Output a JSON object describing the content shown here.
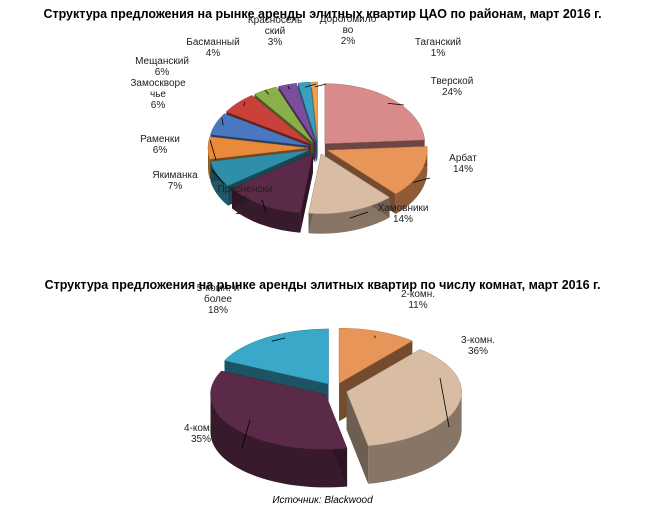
{
  "chart_data": [
    {
      "type": "pie",
      "style": "3d-exploded",
      "title": "Структура предложения на рынке аренды элитных квартир ЦАО по районам, март 2016 г.",
      "slices": [
        {
          "name_lines": [
            "Тверской"
          ],
          "value_text": "24%",
          "value": 24,
          "color": "#d98a8a"
        },
        {
          "name_lines": [
            "Арбат"
          ],
          "value_text": "14%",
          "value": 14,
          "color": "#e8955a"
        },
        {
          "name_lines": [
            "Хамовники"
          ],
          "value_text": "14%",
          "value": 14,
          "color": "#d9bca4"
        },
        {
          "name_lines": [
            "Пресненски",
            "й"
          ],
          "value_text": "13%",
          "value": 13,
          "color": "#5a2a48"
        },
        {
          "name_lines": [
            "Якиманка"
          ],
          "value_text": "7%",
          "value": 7,
          "color": "#2f8fa8"
        },
        {
          "name_lines": [
            "Раменки"
          ],
          "value_text": "6%",
          "value": 6,
          "color": "#e88a3a"
        },
        {
          "name_lines": [
            "Замоскворе",
            "чье"
          ],
          "value_text": "6%",
          "value": 6,
          "color": "#4a78c0"
        },
        {
          "name_lines": [
            "Мещанский"
          ],
          "value_text": "6%",
          "value": 6,
          "color": "#c8423a"
        },
        {
          "name_lines": [
            "Басманный"
          ],
          "value_text": "4%",
          "value": 4,
          "color": "#8ab04a"
        },
        {
          "name_lines": [
            "Красносель",
            "ский"
          ],
          "value_text": "3%",
          "value": 3,
          "color": "#7a4e9a"
        },
        {
          "name_lines": [
            "Дорогомило",
            "во"
          ],
          "value_text": "2%",
          "value": 2,
          "color": "#3aa0c0"
        },
        {
          "name_lines": [
            "Таганский"
          ],
          "value_text": "1%",
          "value": 1,
          "color": "#f0a050"
        }
      ]
    },
    {
      "type": "pie",
      "style": "3d-exploded",
      "title": "Структура предложения на рынке аренды элитных квартир по числу комнат, март 2016 г.",
      "slices": [
        {
          "name_lines": [
            "2-комн."
          ],
          "value_text": "11%",
          "value": 11,
          "color": "#e8955a"
        },
        {
          "name_lines": [
            "3-комн."
          ],
          "value_text": "36%",
          "value": 36,
          "color": "#d9bca4"
        },
        {
          "name_lines": [
            "4-комн."
          ],
          "value_text": "35%",
          "value": 35,
          "color": "#5a2a48"
        },
        {
          "name_lines": [
            "5-комн. и",
            "более"
          ],
          "value_text": "18%",
          "value": 18,
          "color": "#3aa8c8"
        }
      ]
    }
  ],
  "source": "Источник: Blackwood"
}
